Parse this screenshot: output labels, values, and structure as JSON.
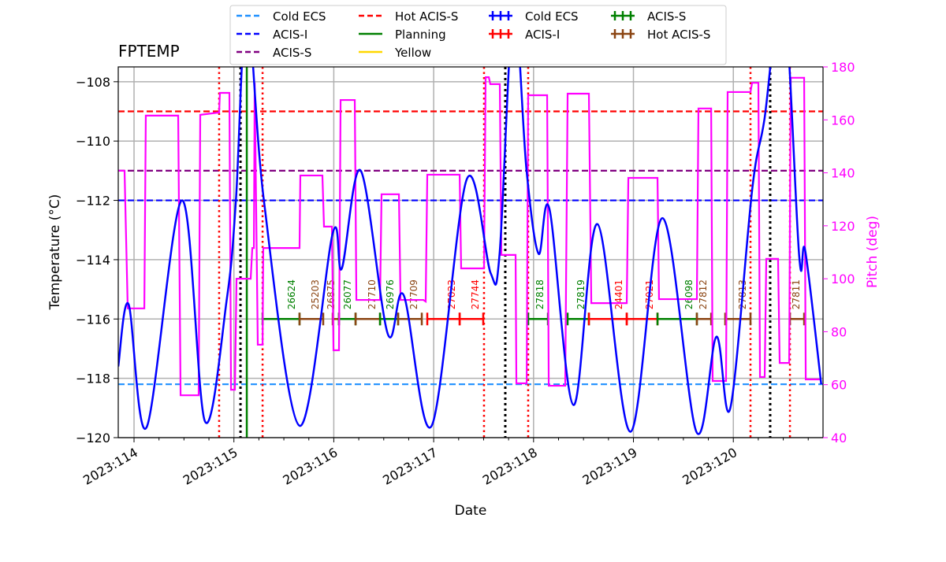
{
  "chart_data": {
    "type": "line",
    "title": "FPTEMP",
    "xlabel": "Date",
    "ylabel": "Temperature ($^\\circ$C)",
    "ylabel_display": "Temperature (°C)",
    "y2label": "Pitch (deg)",
    "xlim": [
      113.842,
      120.898
    ],
    "ylim": [
      -120,
      -107.5
    ],
    "y2lim": [
      40,
      180
    ],
    "grid": true,
    "legend_position": "top-center",
    "x_ticks": [
      {
        "value": 114,
        "label": "2023:114"
      },
      {
        "value": 115,
        "label": "2023:115"
      },
      {
        "value": 116,
        "label": "2023:116"
      },
      {
        "value": 117,
        "label": "2023:117"
      },
      {
        "value": 118,
        "label": "2023:118"
      },
      {
        "value": 119,
        "label": "2023:119"
      },
      {
        "value": 120,
        "label": "2023:120"
      }
    ],
    "y_ticks": [
      -120,
      -118,
      -116,
      -114,
      -112,
      -110,
      -108
    ],
    "y_tick_labels": [
      "−120",
      "−118",
      "−116",
      "−114",
      "−112",
      "−110",
      "−108"
    ],
    "y2_ticks": [
      40,
      60,
      80,
      100,
      120,
      140,
      160,
      180
    ],
    "y2_tick_labels": [
      "40",
      "60",
      "80",
      "100",
      "120",
      "140",
      "160",
      "180"
    ],
    "limits": [
      {
        "name": "Cold ECS",
        "value": -118.2,
        "color": "#1e90ff"
      },
      {
        "name": "ACIS-I",
        "value": -112,
        "color": "#0000ff"
      },
      {
        "name": "ACIS-S",
        "value": -111,
        "color": "#800080"
      },
      {
        "name": "Hot ACIS-S",
        "value": -109,
        "color": "#ff0000"
      }
    ],
    "vlines": {
      "red_dotted": [
        114.852,
        115.287,
        117.504,
        117.946,
        120.172,
        120.567
      ],
      "black_dotted": [
        115.066,
        117.717,
        120.369
      ],
      "planning_green": [
        115.129
      ]
    },
    "temperature": {
      "color": "#0000ff",
      "points": [
        [
          113.842,
          -117.6
        ],
        [
          113.945,
          -115.5
        ],
        [
          114.126,
          -119.65
        ],
        [
          114.481,
          -112.0
        ],
        [
          114.71,
          -119.45
        ],
        [
          114.93,
          -115.3
        ],
        [
          115.02,
          -112.0
        ],
        [
          115.13,
          -105.5
        ],
        [
          115.3,
          -112.0
        ],
        [
          115.657,
          -119.6
        ],
        [
          115.99,
          -113.1
        ],
        [
          116.08,
          -114.3
        ],
        [
          116.27,
          -111.0
        ],
        [
          116.54,
          -116.5
        ],
        [
          116.7,
          -115.2
        ],
        [
          116.98,
          -119.6
        ],
        [
          117.33,
          -111.3
        ],
        [
          117.57,
          -114.45
        ],
        [
          117.66,
          -113.8
        ],
        [
          117.8,
          -105.5
        ],
        [
          117.93,
          -111.0
        ],
        [
          118.05,
          -113.8
        ],
        [
          118.16,
          -112.3
        ],
        [
          118.4,
          -118.9
        ],
        [
          118.64,
          -112.8
        ],
        [
          118.97,
          -119.8
        ],
        [
          119.29,
          -112.6
        ],
        [
          119.63,
          -119.8
        ],
        [
          119.83,
          -116.6
        ],
        [
          119.97,
          -119.0
        ],
        [
          120.19,
          -111.6
        ],
        [
          120.31,
          -109.3
        ],
        [
          120.5,
          -105.0
        ],
        [
          120.66,
          -113.9
        ],
        [
          120.72,
          -113.7
        ],
        [
          120.88,
          -118.2
        ]
      ]
    },
    "pitch": {
      "color": "#ff00ff",
      "points": [
        [
          113.842,
          140.8
        ],
        [
          113.905,
          140.8
        ],
        [
          113.937,
          88.8
        ],
        [
          114.103,
          88.8
        ],
        [
          114.118,
          161.6
        ],
        [
          114.442,
          161.6
        ],
        [
          114.466,
          56
        ],
        [
          114.647,
          56
        ],
        [
          114.663,
          161.9
        ],
        [
          114.852,
          162.8
        ],
        [
          114.86,
          170.2
        ],
        [
          114.955,
          170.2
        ],
        [
          114.971,
          58.1
        ],
        [
          115.01,
          58.1
        ],
        [
          115.026,
          100
        ],
        [
          115.168,
          100
        ],
        [
          115.184,
          111.6
        ],
        [
          115.2,
          111.6
        ],
        [
          115.208,
          174
        ],
        [
          115.239,
          75.1
        ],
        [
          115.287,
          75.1
        ],
        [
          115.294,
          111.6
        ],
        [
          115.657,
          111.6
        ],
        [
          115.665,
          139
        ],
        [
          115.886,
          139
        ],
        [
          115.902,
          119.7
        ],
        [
          115.981,
          119.7
        ],
        [
          115.997,
          73
        ],
        [
          116.052,
          73
        ],
        [
          116.068,
          167.5
        ],
        [
          116.21,
          167.5
        ],
        [
          116.226,
          92
        ],
        [
          116.463,
          92
        ],
        [
          116.478,
          131.9
        ],
        [
          116.652,
          131.9
        ],
        [
          116.668,
          92
        ],
        [
          116.897,
          92
        ],
        [
          116.92,
          91.4
        ],
        [
          116.936,
          139.3
        ],
        [
          117.26,
          139.3
        ],
        [
          117.275,
          103.9
        ],
        [
          117.504,
          103.9
        ],
        [
          117.52,
          176.1
        ],
        [
          117.552,
          176.1
        ],
        [
          117.567,
          173.5
        ],
        [
          117.662,
          173.5
        ],
        [
          117.678,
          109
        ],
        [
          117.82,
          109
        ],
        [
          117.828,
          60.5
        ],
        [
          117.931,
          60.5
        ],
        [
          117.946,
          169.3
        ],
        [
          118.136,
          169.3
        ],
        [
          118.152,
          59.6
        ],
        [
          118.317,
          59.6
        ],
        [
          118.341,
          169.9
        ],
        [
          118.554,
          169.9
        ],
        [
          118.578,
          90.8
        ],
        [
          118.933,
          90.8
        ],
        [
          118.949,
          138.1
        ],
        [
          119.241,
          138.1
        ],
        [
          119.256,
          92.3
        ],
        [
          119.635,
          92.3
        ],
        [
          119.651,
          164.3
        ],
        [
          119.778,
          164.3
        ],
        [
          119.793,
          61.4
        ],
        [
          119.927,
          61.4
        ],
        [
          119.943,
          170.5
        ],
        [
          120.172,
          170.5
        ],
        [
          120.188,
          174
        ],
        [
          120.251,
          174
        ],
        [
          120.267,
          62.9
        ],
        [
          120.314,
          62.9
        ],
        [
          120.33,
          107.5
        ],
        [
          120.448,
          107.5
        ],
        [
          120.464,
          68.2
        ],
        [
          120.559,
          68.2
        ],
        [
          120.575,
          175.9
        ],
        [
          120.709,
          175.9
        ],
        [
          120.725,
          62
        ],
        [
          120.882,
          62
        ]
      ]
    },
    "obsid_level": -116,
    "obsid_colors": {
      "Cold ECS": "#0000ff",
      "ACIS-I": "#ff0000",
      "ACIS-S": "#008000",
      "Hot ACIS-S": "#8b4513"
    },
    "obsids": [
      {
        "obsid": "26624",
        "start": 115.287,
        "stop": 115.657,
        "type": "ACIS-S"
      },
      {
        "obsid": "25203",
        "start": 115.657,
        "stop": 115.894,
        "type": "Hot ACIS-S"
      },
      {
        "obsid": "26875",
        "start": 115.989,
        "stop": 116.052,
        "type": "Hot ACIS-S"
      },
      {
        "obsid": "26077",
        "start": 116.052,
        "stop": 116.218,
        "type": "ACIS-S"
      },
      {
        "obsid": "27710",
        "start": 116.218,
        "stop": 116.463,
        "type": "Hot ACIS-S"
      },
      {
        "obsid": "26976",
        "start": 116.463,
        "stop": 116.644,
        "type": "ACIS-S"
      },
      {
        "obsid": "27709",
        "start": 116.644,
        "stop": 116.881,
        "type": "Hot ACIS-S"
      },
      {
        "obsid": "27023",
        "start": 116.936,
        "stop": 117.26,
        "type": "ACIS-I"
      },
      {
        "obsid": "27744",
        "start": 117.26,
        "stop": 117.496,
        "type": "ACIS-I"
      },
      {
        "obsid": "27818",
        "start": 117.946,
        "stop": 118.144,
        "type": "ACIS-S"
      },
      {
        "obsid": "27819",
        "start": 118.341,
        "stop": 118.554,
        "type": "ACIS-S"
      },
      {
        "obsid": "24401",
        "start": 118.554,
        "stop": 118.933,
        "type": "ACIS-I"
      },
      {
        "obsid": "27021",
        "start": 118.933,
        "stop": 119.241,
        "type": "ACIS-I"
      },
      {
        "obsid": "26098",
        "start": 119.241,
        "stop": 119.635,
        "type": "ACIS-S"
      },
      {
        "obsid": "27812",
        "start": 119.635,
        "stop": 119.778,
        "type": "Hot ACIS-S"
      },
      {
        "obsid": "27813",
        "start": 119.919,
        "stop": 120.172,
        "type": "Hot ACIS-S"
      },
      {
        "obsid": "27811",
        "start": 120.567,
        "stop": 120.709,
        "type": "Hot ACIS-S"
      }
    ],
    "legend": [
      {
        "label": "Cold ECS",
        "style": "dashed",
        "color": "#1e90ff"
      },
      {
        "label": "ACIS-I",
        "style": "dashed",
        "color": "#0000ff"
      },
      {
        "label": "ACIS-S",
        "style": "dashed",
        "color": "#800080"
      },
      {
        "label": "Hot ACIS-S",
        "style": "dashed",
        "color": "#ff0000"
      },
      {
        "label": "Planning",
        "style": "solid",
        "color": "#008000"
      },
      {
        "label": "Yellow",
        "style": "solid",
        "color": "#ffd700"
      },
      {
        "label": "Cold ECS",
        "style": "errorbar",
        "color": "#0000ff"
      },
      {
        "label": "ACIS-I",
        "style": "errorbar",
        "color": "#ff0000"
      },
      {
        "label": "ACIS-S",
        "style": "errorbar",
        "color": "#008000"
      },
      {
        "label": "Hot ACIS-S",
        "style": "errorbar",
        "color": "#8b4513"
      }
    ]
  }
}
